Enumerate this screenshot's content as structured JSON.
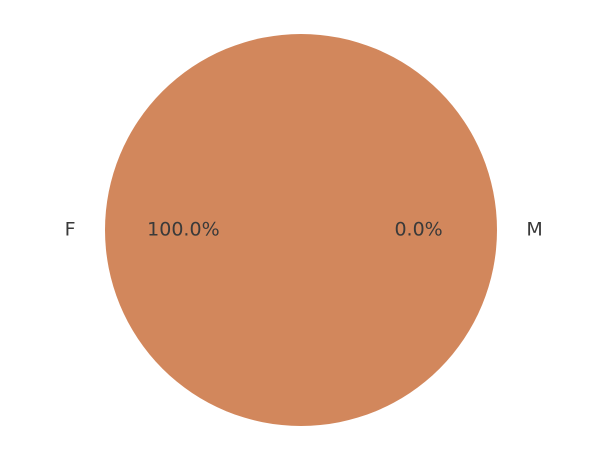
{
  "chart_data": {
    "type": "pie",
    "title": "",
    "slices": [
      {
        "label": "F",
        "value": 100.0,
        "pct_label": "100.0%",
        "color": "#d2875c"
      },
      {
        "label": "M",
        "value": 0.0,
        "pct_label": "0.0%",
        "color": "#4c72b0"
      }
    ],
    "start_angle_deg": 0,
    "direction": "counterclockwise",
    "legend": "none"
  }
}
